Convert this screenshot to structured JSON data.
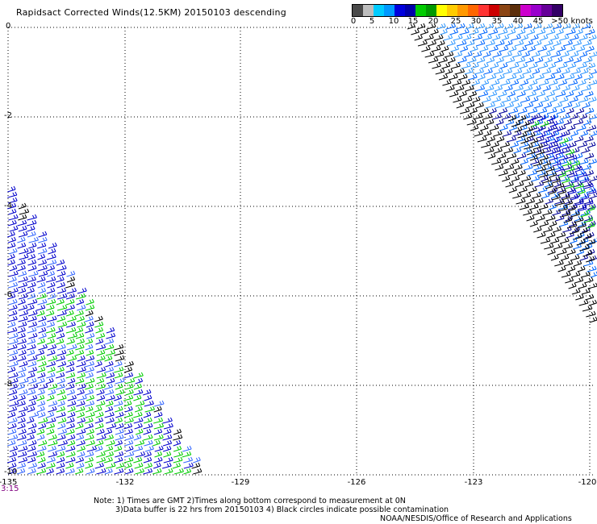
{
  "title": "Rapidsact Corrected Winds(12.5KM) 20150103 descending",
  "colorbar": {
    "colors": [
      "#4a4a4a",
      "#bdbdbd",
      "#00ccff",
      "#0099ff",
      "#0000dd",
      "#0000aa",
      "#00cc00",
      "#009900",
      "#ffff00",
      "#ffcc00",
      "#ff9900",
      "#ff6600",
      "#ff3333",
      "#cc0000",
      "#8b4513",
      "#5c2e0a",
      "#cc00cc",
      "#9900cc",
      "#660099",
      "#330066"
    ],
    "labels": [
      "0",
      "5",
      "10",
      "15",
      "20",
      "25",
      "30",
      "35",
      "40",
      "45",
      ">50 knots"
    ]
  },
  "axes": {
    "y_labels": [
      "0",
      "-2",
      "-4",
      "-6",
      "-8",
      "-10"
    ],
    "x_labels": [
      "-135",
      "-132",
      "-129",
      "-126",
      "-123",
      "-120"
    ],
    "time_label": "3:15"
  },
  "swaths": [
    {
      "name": "west-swath",
      "colors": [
        "#0000cc",
        "#3366ff",
        "#00cc00",
        "#000000"
      ]
    },
    {
      "name": "east-swath-1",
      "colors": [
        "#000000",
        "#3399ff",
        "#0066ff",
        "#000099"
      ]
    },
    {
      "name": "east-swath-2",
      "colors": [
        "#000000",
        "#0000cc",
        "#00cc00"
      ]
    }
  ],
  "notes": {
    "line1": "Note: 1) Times are GMT 2)Times along bottom correspond to measurement at 0N",
    "line2": "3)Data buffer is 22 hrs from 20150103 4) Black circles indicate possible contamination",
    "line3": "NOAA/NESDIS/Office of Research and Applications"
  }
}
